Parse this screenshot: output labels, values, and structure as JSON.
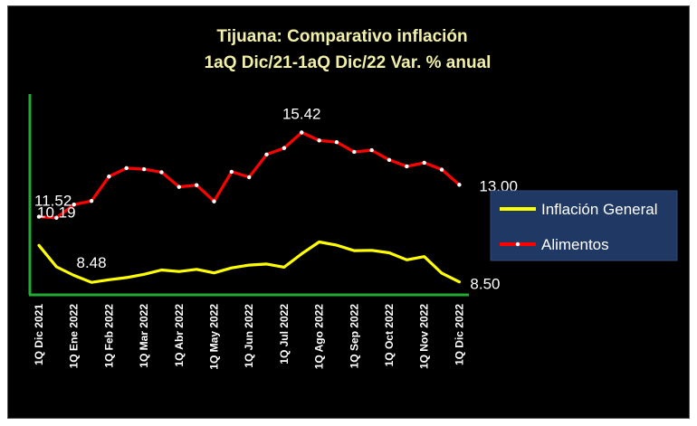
{
  "chart_data": {
    "type": "line",
    "title": "Tijuana: Comparativo inflación",
    "subtitle": "1aQ Dic/21-1aQ Dic/22 Var. % anual",
    "categories": [
      "1Q Dic 2021",
      "",
      "1Q Ene 2022",
      "",
      "1Q Feb 2022",
      "",
      "1Q Mar 2022",
      "",
      "1Q Abr 2022",
      "",
      "1Q May 2022",
      "",
      "1Q Jun 2022",
      "",
      "1Q Jul 2022",
      "",
      "1Q Ago 2022",
      "",
      "1Q Sep 2022",
      "",
      "1Q Oct 2022",
      "",
      "1Q Nov 2022",
      "",
      "1Q Dic 2022"
    ],
    "series": [
      {
        "name": "Inflación General",
        "color": "#ffff00",
        "values": [
          10.19,
          9.2,
          8.8,
          8.48,
          8.6,
          8.7,
          8.85,
          9.05,
          8.98,
          9.08,
          8.92,
          9.15,
          9.28,
          9.33,
          9.18,
          9.8,
          10.35,
          10.2,
          9.95,
          9.96,
          9.85,
          9.52,
          9.67,
          8.9,
          8.5
        ],
        "labels": {
          "0": "10.19",
          "3": "8.48",
          "24": "8.50"
        }
      },
      {
        "name": "Alimentos",
        "color": "#ff0000",
        "values": [
          11.52,
          11.47,
          12.08,
          12.25,
          13.38,
          13.77,
          13.72,
          13.58,
          12.9,
          12.98,
          12.23,
          13.6,
          13.35,
          14.4,
          14.7,
          15.42,
          15.05,
          14.97,
          14.52,
          14.6,
          14.15,
          13.85,
          14.02,
          13.7,
          13.0
        ],
        "labels": {
          "0": "11.52",
          "15": "15.42",
          "24": "13.00"
        }
      }
    ],
    "legend_position": "right",
    "grid": false,
    "ylim": [
      7.9,
      17.2
    ]
  }
}
